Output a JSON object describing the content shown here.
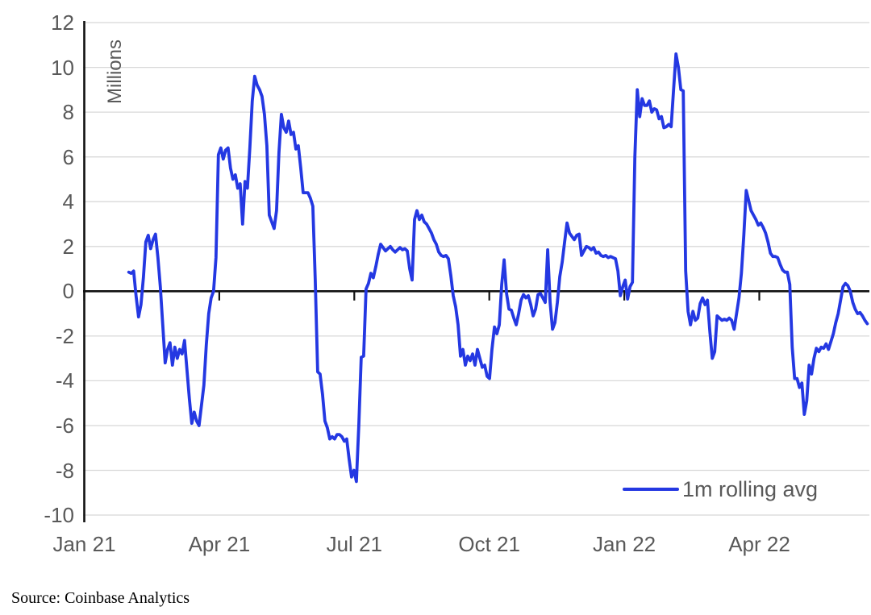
{
  "page": {
    "background": "#ffffff"
  },
  "chart": {
    "y_axis_unit_label": "Millions",
    "legend": {
      "label": "1m rolling avg"
    },
    "source_note": "Source: Coinbase Analytics"
  },
  "colors": {
    "series_line": "#2438e2",
    "gridline": "#d8d8d8",
    "axis": "#111111",
    "tick_label": "#595959",
    "source_text": "#000000"
  },
  "chart_data": {
    "type": "line",
    "title": "",
    "xlabel": "",
    "ylabel": "Millions",
    "ylim": [
      -10,
      12
    ],
    "y_ticks": [
      12,
      10,
      8,
      6,
      4,
      2,
      0,
      -2,
      -4,
      -6,
      -8,
      -10
    ],
    "x_tick_labels": [
      "Jan 21",
      "Apr 21",
      "Jul 21",
      "Oct 21",
      "Jan 22",
      "Apr 22"
    ],
    "x_tick_positions_months": [
      0,
      3,
      6,
      9,
      12,
      15
    ],
    "grid": "horizontal",
    "legend_position": "inside-bottom-right",
    "series": [
      {
        "name": "1m rolling avg",
        "x_unit": "months_since_jan_2021",
        "x_start": 0.99,
        "x_step": 0.0538,
        "values": [
          0.85,
          0.8,
          0.9,
          -0.2,
          -1.15,
          -0.6,
          0.6,
          2.2,
          2.5,
          1.9,
          2.3,
          2.55,
          1.5,
          0.2,
          -1.5,
          -3.2,
          -2.6,
          -2.3,
          -3.3,
          -2.5,
          -3.0,
          -2.6,
          -2.8,
          -2.2,
          -3.5,
          -4.8,
          -5.9,
          -5.4,
          -5.8,
          -6.0,
          -5.1,
          -4.2,
          -2.4,
          -1.0,
          -0.3,
          0.0,
          1.5,
          6.1,
          6.4,
          5.9,
          6.3,
          6.4,
          5.5,
          5.0,
          5.2,
          4.6,
          4.8,
          3.0,
          4.9,
          4.6,
          6.4,
          8.5,
          9.6,
          9.2,
          9.0,
          8.7,
          7.9,
          6.5,
          3.4,
          3.1,
          2.8,
          3.6,
          6.2,
          7.9,
          7.3,
          7.1,
          7.6,
          7.0,
          7.1,
          6.35,
          6.5,
          5.5,
          4.4,
          4.4,
          4.4,
          4.15,
          3.8,
          0.5,
          -3.6,
          -3.7,
          -4.6,
          -5.8,
          -6.1,
          -6.6,
          -6.5,
          -6.6,
          -6.4,
          -6.4,
          -6.5,
          -6.7,
          -6.6,
          -7.5,
          -8.3,
          -8.0,
          -8.5,
          -6.0,
          -2.95,
          -2.9,
          0.1,
          0.35,
          0.8,
          0.6,
          1.1,
          1.65,
          2.1,
          1.95,
          1.8,
          1.9,
          2.0,
          1.85,
          1.75,
          1.85,
          1.95,
          1.85,
          1.9,
          1.8,
          1.0,
          0.5,
          3.2,
          3.6,
          3.2,
          3.4,
          3.1,
          3.0,
          2.8,
          2.6,
          2.3,
          2.1,
          1.75,
          1.6,
          1.55,
          1.6,
          1.45,
          0.7,
          -0.2,
          -0.7,
          -1.5,
          -2.9,
          -2.6,
          -3.3,
          -2.9,
          -3.1,
          -2.8,
          -3.3,
          -2.6,
          -3.0,
          -3.4,
          -3.3,
          -3.8,
          -3.9,
          -2.6,
          -1.6,
          -1.9,
          -1.5,
          0.3,
          1.4,
          -0.1,
          -0.8,
          -0.85,
          -1.2,
          -1.5,
          -1.0,
          -0.4,
          -0.15,
          -0.3,
          -0.2,
          -0.6,
          -1.1,
          -0.8,
          -0.15,
          -0.1,
          -0.3,
          -0.5,
          1.85,
          -0.5,
          -1.7,
          -1.4,
          -0.5,
          0.65,
          1.3,
          2.2,
          3.05,
          2.6,
          2.45,
          2.3,
          2.5,
          2.55,
          1.6,
          1.8,
          2.0,
          1.95,
          1.85,
          1.95,
          1.7,
          1.75,
          1.6,
          1.55,
          1.6,
          1.5,
          1.55,
          1.5,
          1.45,
          0.9,
          -0.2,
          0.2,
          0.5,
          -0.35,
          0.2,
          0.4,
          6.0,
          9.0,
          7.8,
          8.6,
          8.3,
          8.3,
          8.5,
          8.0,
          8.15,
          8.1,
          7.7,
          7.8,
          7.3,
          7.35,
          7.45,
          7.35,
          9.0,
          10.6,
          10.0,
          9.0,
          8.95,
          0.9,
          -0.9,
          -1.5,
          -0.9,
          -1.3,
          -1.2,
          -0.55,
          -0.3,
          -0.6,
          -0.4,
          -1.8,
          -3.0,
          -2.7,
          -1.1,
          -1.2,
          -1.3,
          -1.25,
          -1.3,
          -1.2,
          -1.3,
          -1.7,
          -1.0,
          -0.3,
          0.8,
          2.5,
          4.5,
          4.05,
          3.6,
          3.4,
          3.2,
          2.95,
          3.05,
          2.85,
          2.6,
          2.2,
          1.7,
          1.55,
          1.55,
          1.5,
          1.2,
          0.95,
          0.85,
          0.85,
          0.3,
          -2.5,
          -3.9,
          -3.9,
          -4.3,
          -4.1,
          -5.5,
          -4.9,
          -3.3,
          -3.7,
          -3.0,
          -2.55,
          -2.7,
          -2.5,
          -2.55,
          -2.35,
          -2.6,
          -2.25,
          -1.9,
          -1.4,
          -1.0,
          -0.4,
          0.2,
          0.35,
          0.25,
          0.0,
          -0.5,
          -0.8,
          -1.0,
          -0.95,
          -1.1,
          -1.3,
          -1.45
        ]
      }
    ]
  }
}
